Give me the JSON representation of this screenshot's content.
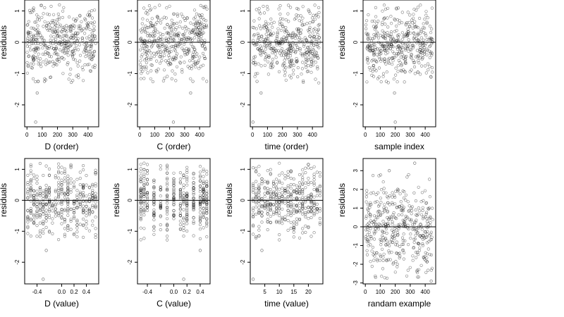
{
  "chart_data": [
    {
      "type": "scatter",
      "xlabel": "D (order)",
      "ylabel": "residuals",
      "xlim": [
        -15,
        470
      ],
      "ylim": [
        -2.7,
        1.35
      ],
      "xticks": [
        0,
        100,
        200,
        300,
        400
      ],
      "yticks": [
        1,
        0,
        -1,
        -2
      ],
      "hline": 0,
      "x_domain": [
        1,
        450
      ],
      "y_range": [
        -1.3,
        1.2
      ],
      "outliers": [
        {
          "x": 57,
          "y": -2.55
        },
        {
          "x": 67,
          "y": -1.62
        },
        {
          "x": 115,
          "y": -1.25
        }
      ],
      "n_points": 420,
      "seed": 11
    },
    {
      "type": "scatter",
      "xlabel": "C (order)",
      "ylabel": "residuals",
      "xlim": [
        -15,
        470
      ],
      "ylim": [
        -2.7,
        1.35
      ],
      "xticks": [
        0,
        100,
        200,
        300,
        400
      ],
      "yticks": [
        1,
        0,
        -1,
        -2
      ],
      "hline": 0,
      "x_domain": [
        1,
        450
      ],
      "y_range": [
        -1.3,
        1.2
      ],
      "outliers": [
        {
          "x": 225,
          "y": -2.55
        },
        {
          "x": 340,
          "y": -1.62
        },
        {
          "x": 355,
          "y": -1.25
        }
      ],
      "n_points": 420,
      "seed": 23
    },
    {
      "type": "scatter",
      "xlabel": "time (order)",
      "ylabel": "residuals",
      "xlim": [
        -15,
        470
      ],
      "ylim": [
        -2.7,
        1.35
      ],
      "xticks": [
        0,
        100,
        200,
        300,
        400
      ],
      "yticks": [
        1,
        0,
        -1,
        -2
      ],
      "hline": 0,
      "x_domain": [
        1,
        450
      ],
      "y_range": [
        -1.3,
        1.2
      ],
      "outliers": [
        {
          "x": 3,
          "y": -2.55
        },
        {
          "x": 57,
          "y": -1.62
        },
        {
          "x": 30,
          "y": -1.25
        }
      ],
      "n_points": 420,
      "seed": 37
    },
    {
      "type": "scatter",
      "xlabel": "sample index",
      "ylabel": "residuals",
      "xlim": [
        -15,
        470
      ],
      "ylim": [
        -2.7,
        1.35
      ],
      "xticks": [
        0,
        100,
        200,
        300,
        400
      ],
      "yticks": [
        1,
        0,
        -1,
        -2
      ],
      "hline": 0,
      "x_domain": [
        1,
        450
      ],
      "y_range": [
        -1.3,
        1.2
      ],
      "outliers": [
        {
          "x": 200,
          "y": -2.55
        },
        {
          "x": 195,
          "y": -1.62
        },
        {
          "x": 140,
          "y": -1.25
        }
      ],
      "n_points": 420,
      "seed": 41
    },
    {
      "type": "scatter",
      "xlabel": "D (value)",
      "ylabel": "residuals",
      "xlim": [
        -0.6,
        0.6
      ],
      "ylim": [
        -2.7,
        1.35
      ],
      "xticks": [
        -0.4,
        0.0,
        0.2,
        0.4
      ],
      "xtick_labels": [
        "-0.4",
        "0.0",
        "0.2",
        "0.4"
      ],
      "yticks": [
        1,
        0,
        -1,
        -2
      ],
      "hline": 0,
      "x_domain": [
        -0.55,
        0.55
      ],
      "x_levels": [
        -0.55,
        -0.5,
        -0.45,
        -0.4,
        -0.35,
        -0.3,
        -0.25,
        -0.2,
        -0.15,
        -0.1,
        -0.05,
        0.0,
        0.05,
        0.1,
        0.15,
        0.2,
        0.25,
        0.3,
        0.35,
        0.4,
        0.45,
        0.5,
        0.55
      ],
      "y_range": [
        -1.3,
        1.2
      ],
      "outliers": [
        {
          "x": -0.3,
          "y": -2.55
        },
        {
          "x": -0.25,
          "y": -1.62
        }
      ],
      "n_points": 420,
      "seed": 53
    },
    {
      "type": "scatter",
      "xlabel": "C (value)",
      "ylabel": "residuals",
      "xlim": [
        -0.55,
        0.55
      ],
      "ylim": [
        -2.7,
        1.35
      ],
      "xticks": [
        -0.4,
        -0.2,
        0.0,
        0.2,
        0.4
      ],
      "xtick_labels": [
        "-0.4",
        "",
        "0.0",
        "0.2",
        "0.4"
      ],
      "yticks": [
        1,
        0,
        -1,
        -2
      ],
      "hline": 0,
      "x_domain": [
        -0.5,
        0.5
      ],
      "x_levels": [
        -0.5,
        -0.45,
        -0.4,
        -0.3,
        -0.2,
        -0.1,
        0.0,
        0.1,
        0.15,
        0.2,
        0.3,
        0.4,
        0.45,
        0.5
      ],
      "y_range": [
        -1.3,
        1.2
      ],
      "outliers": [
        {
          "x": 0.15,
          "y": -2.55
        },
        {
          "x": 0.4,
          "y": -1.62
        }
      ],
      "n_points": 420,
      "seed": 61
    },
    {
      "type": "scatter",
      "xlabel": "time (value)",
      "ylabel": "residuals",
      "xlim": [
        0,
        25
      ],
      "ylim": [
        -2.7,
        1.35
      ],
      "xticks": [
        5,
        10,
        15,
        20
      ],
      "yticks": [
        1,
        0,
        -1,
        -2
      ],
      "hline": 0,
      "x_domain": [
        1,
        24
      ],
      "x_levels": [
        1,
        2,
        3,
        4,
        5,
        6,
        7,
        8,
        9,
        10,
        11,
        12,
        13,
        14,
        15,
        16,
        17,
        18,
        19,
        20,
        21,
        22,
        23,
        24
      ],
      "y_range": [
        -1.3,
        1.2
      ],
      "outliers": [
        {
          "x": 1,
          "y": -2.55
        },
        {
          "x": 4,
          "y": -1.62
        }
      ],
      "n_points": 420,
      "seed": 71
    },
    {
      "type": "scatter",
      "xlabel": "randam example",
      "ylabel": "residuals",
      "xlim": [
        -15,
        470
      ],
      "ylim": [
        -3.05,
        3.65
      ],
      "xticks": [
        0,
        100,
        200,
        300,
        400
      ],
      "yticks": [
        3,
        2,
        1,
        0,
        -1,
        -2,
        -3
      ],
      "hline": 0,
      "x_domain": [
        1,
        450
      ],
      "y_range": [
        -2.8,
        2.8
      ],
      "outliers": [
        {
          "x": 330,
          "y": 3.4
        },
        {
          "x": 160,
          "y": 3.0
        },
        {
          "x": 440,
          "y": -2.9
        }
      ],
      "n_points": 420,
      "seed": 83
    }
  ]
}
